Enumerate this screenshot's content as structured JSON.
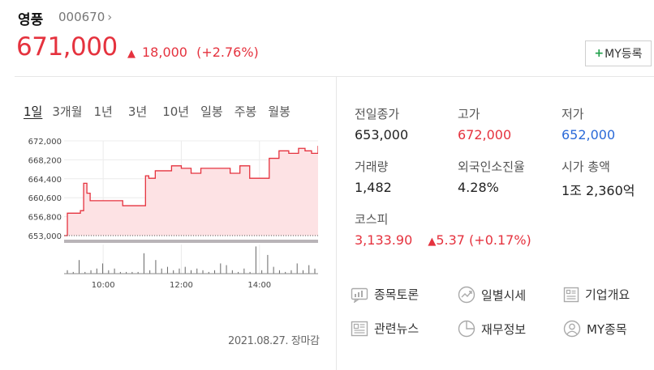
{
  "header": {
    "name": "영풍",
    "code": "000670",
    "price": "671,000",
    "change_amount": "18,000",
    "change_pct": "(+2.76%)",
    "my_button_label": "MY등록"
  },
  "periods": [
    "1일",
    "3개월",
    "1년",
    "3년",
    "10년",
    "일봉",
    "주봉",
    "월봉"
  ],
  "active_period": "1일",
  "chart_data": {
    "type": "area",
    "title": "",
    "x_ticks": [
      "10:00",
      "12:00",
      "14:00"
    ],
    "y_ticks": [
      "672,000",
      "668,200",
      "664,400",
      "660,600",
      "656,800",
      "653,000"
    ],
    "ylim": [
      653000,
      672000
    ],
    "reference_line": 653000,
    "series": [
      {
        "x": [
          "09:00",
          "09:05",
          "09:10",
          "09:25",
          "09:30",
          "09:35",
          "09:40",
          "09:45",
          "10:00",
          "10:15",
          "10:30",
          "10:45",
          "11:00",
          "11:05",
          "11:10",
          "11:15",
          "11:20",
          "11:30",
          "11:45",
          "12:00",
          "12:15",
          "12:30",
          "12:45",
          "13:00",
          "13:15",
          "13:30",
          "13:45",
          "14:00",
          "14:15",
          "14:30",
          "14:45",
          "15:00",
          "15:10",
          "15:20",
          "15:30"
        ],
        "values": [
          653000,
          657500,
          657500,
          658000,
          663500,
          661500,
          660000,
          660000,
          660000,
          660000,
          659000,
          659000,
          659000,
          665000,
          664500,
          664500,
          666000,
          666000,
          667000,
          666500,
          665500,
          666500,
          666500,
          666500,
          665500,
          667000,
          664500,
          664500,
          668500,
          670000,
          669500,
          670500,
          670000,
          669500,
          671000
        ]
      }
    ],
    "volume": [
      2,
      1,
      8,
      1,
      2,
      3,
      6,
      2,
      3,
      1,
      1,
      1,
      1,
      12,
      2,
      8,
      3,
      4,
      2,
      3,
      4,
      2,
      3,
      2,
      1,
      2,
      6,
      5,
      2,
      1,
      3,
      1,
      16,
      2,
      11,
      4,
      2,
      1,
      2,
      6,
      2,
      5,
      3
    ]
  },
  "datestamp": "2021.08.27. 장마감",
  "stats": [
    {
      "label": "전일종가",
      "value": "653,000",
      "color": "default"
    },
    {
      "label": "고가",
      "value": "672,000",
      "color": "red"
    },
    {
      "label": "저가",
      "value": "652,000",
      "color": "blue"
    },
    {
      "label": "거래량",
      "value": "1,482",
      "color": "default"
    },
    {
      "label": "외국인소진율",
      "value": "4.28%",
      "color": "default"
    },
    {
      "label": "시가 총액",
      "value": "1조 2,360억",
      "color": "default"
    }
  ],
  "index": {
    "label": "코스피",
    "value": "3,133.90",
    "change": "5.37 (+0.17%)"
  },
  "links": [
    {
      "label": "종목토론",
      "icon": "chat-icon"
    },
    {
      "label": "일별시세",
      "icon": "trend-icon"
    },
    {
      "label": "기업개요",
      "icon": "list-icon"
    },
    {
      "label": "관련뉴스",
      "icon": "news-icon"
    },
    {
      "label": "재무정보",
      "icon": "pie-icon"
    },
    {
      "label": "MY종목",
      "icon": "user-icon"
    }
  ]
}
